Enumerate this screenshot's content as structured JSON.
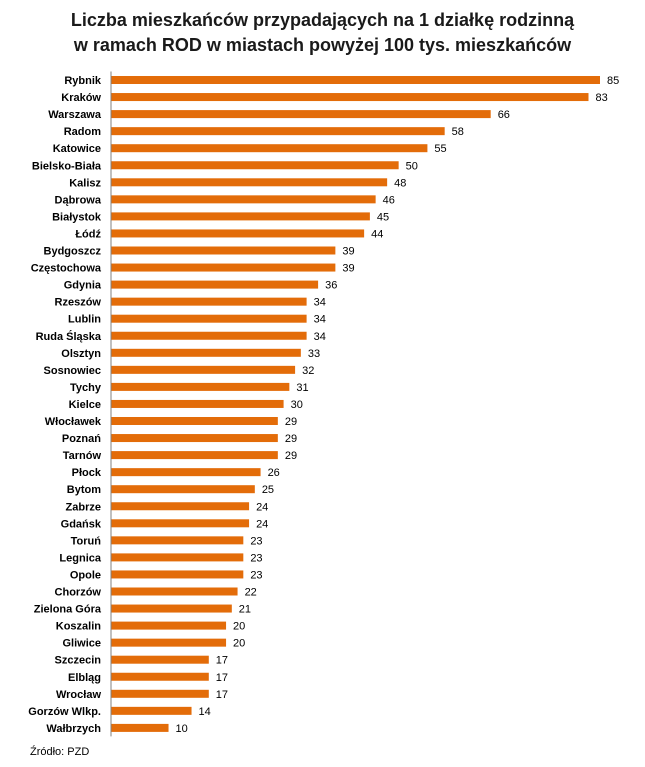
{
  "chart_data": {
    "type": "bar",
    "orientation": "horizontal",
    "title_lines": [
      "Liczba  mieszkańców przypadających na 1 działkę rodzinną",
      "w ramach ROD w miastach powyżej 100 tys. mieszkańców"
    ],
    "categories": [
      "Rybnik",
      "Kraków",
      "Warszawa",
      "Radom",
      "Katowice",
      "Bielsko-Biała",
      "Kalisz",
      "Dąbrowa",
      "Białystok",
      "Łódź",
      "Bydgoszcz",
      "Częstochowa",
      "Gdynia",
      "Rzeszów",
      "Lublin",
      "Ruda Śląska",
      "Olsztyn",
      "Sosnowiec",
      "Tychy",
      "Kielce",
      "Włocławek",
      "Poznań",
      "Tarnów",
      "Płock",
      "Bytom",
      "Zabrze",
      "Gdańsk",
      "Toruń",
      "Legnica",
      "Opole",
      "Chorzów",
      "Zielona Góra",
      "Koszalin",
      "Gliwice",
      "Szczecin",
      "Elbląg",
      "Wrocław",
      "Gorzów Wlkp.",
      "Wałbrzych"
    ],
    "values": [
      85,
      83,
      66,
      58,
      55,
      50,
      48,
      46,
      45,
      44,
      39,
      39,
      36,
      34,
      34,
      34,
      33,
      32,
      31,
      30,
      29,
      29,
      29,
      26,
      25,
      24,
      24,
      23,
      23,
      23,
      22,
      21,
      20,
      20,
      17,
      17,
      17,
      14,
      10
    ],
    "xlim": [
      0,
      85
    ],
    "grid": false,
    "legend": "none",
    "bar_color": "#E36C09",
    "axis_color": "#808080",
    "source": "Źródło: PZD"
  }
}
